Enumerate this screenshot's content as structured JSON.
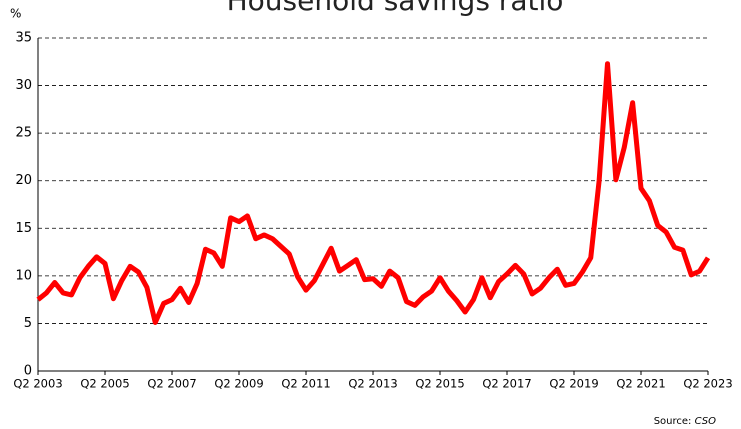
{
  "chart_data": {
    "type": "line",
    "title": "Household savings ratio",
    "ylabel": "%",
    "source_label": "Source:",
    "source": "CSO",
    "categories": [
      "Q2 2003",
      null,
      null,
      null,
      null,
      null,
      null,
      null,
      "Q2 2005",
      null,
      null,
      null,
      null,
      null,
      null,
      null,
      "Q2 2007",
      null,
      null,
      null,
      null,
      null,
      null,
      null,
      "Q2 2009",
      null,
      null,
      null,
      null,
      null,
      null,
      null,
      "Q2 2011",
      null,
      null,
      null,
      null,
      null,
      null,
      null,
      "Q2 2013",
      null,
      null,
      null,
      null,
      null,
      null,
      null,
      "Q2 2015",
      null,
      null,
      null,
      null,
      null,
      null,
      null,
      "Q2 2017",
      null,
      null,
      null,
      null,
      null,
      null,
      null,
      "Q2 2019",
      null,
      null,
      null,
      null,
      null,
      null,
      null,
      "Q2 2021",
      null,
      null,
      null,
      null,
      null,
      null,
      null,
      "Q2 2023"
    ],
    "series": [
      {
        "color": "#ff0000",
        "values": [
          7.5,
          8.2,
          9.3,
          8.2,
          8.0,
          9.8,
          11.0,
          12.0,
          11.3,
          7.6,
          9.5,
          11.0,
          10.4,
          8.8,
          5.1,
          7.1,
          7.5,
          8.7,
          7.2,
          9.2,
          12.8,
          12.4,
          11.0,
          16.1,
          15.7,
          16.3,
          13.9,
          14.3,
          13.9,
          13.1,
          12.3,
          9.9,
          8.5,
          9.5,
          11.2,
          12.9,
          10.5,
          11.1,
          11.7,
          9.6,
          9.7,
          8.9,
          10.5,
          9.8,
          7.3,
          6.9,
          7.8,
          8.4,
          9.8,
          8.4,
          7.4,
          6.2,
          7.5,
          9.8,
          7.7,
          9.4,
          10.2,
          11.1,
          10.2,
          8.1,
          8.7,
          9.8,
          10.7,
          9.0,
          9.2,
          10.4,
          11.9,
          20.0,
          32.3,
          20.1,
          23.5,
          28.2,
          19.2,
          17.9,
          15.3,
          14.6,
          13.0,
          12.7,
          10.1,
          10.5,
          11.9
        ]
      }
    ],
    "ylim": [
      0,
      35
    ],
    "yticks": [
      0,
      5,
      10,
      15,
      20,
      25,
      30,
      35
    ],
    "grid": true
  }
}
